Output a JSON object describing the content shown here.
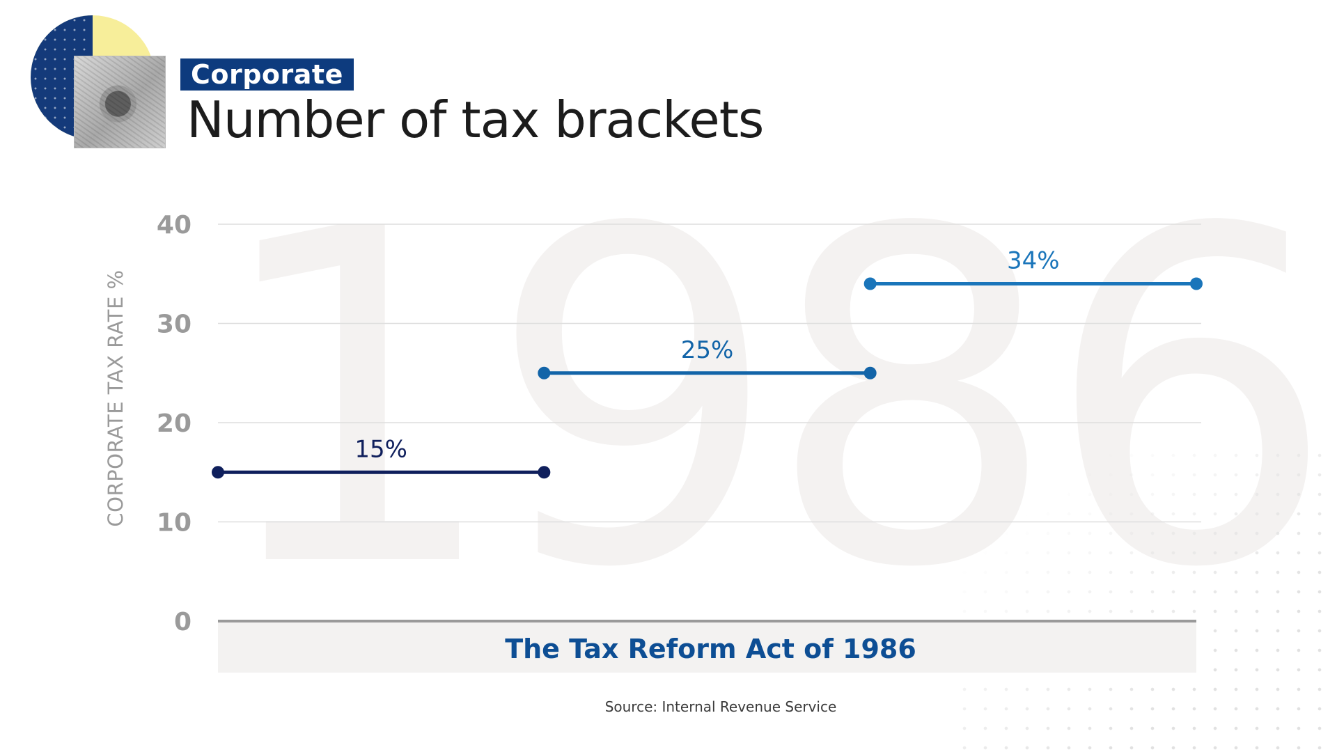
{
  "header": {
    "tag": "Corporate",
    "title": "Number of tax brackets"
  },
  "watermark": "1986",
  "source": "Source: Internal Revenue Service",
  "colors": {
    "tag_bg": "#0d3b7e",
    "series_dark": "#0f1f5c",
    "series_mid": "#1264a8",
    "series_light": "#1a75ba",
    "axis_text": "#9a9a9a",
    "category_text": "#0d4e94"
  },
  "chart_data": {
    "type": "line",
    "title": "Number of tax brackets",
    "ylabel": "CORPORATE TAX RATE %",
    "xlabel": "The Tax Reform Act of 1986",
    "ylim": [
      0,
      40
    ],
    "yticks": [
      0,
      10,
      20,
      30,
      40
    ],
    "grid": true,
    "x_segments": 3,
    "series": [
      {
        "label": "15%",
        "value": 15,
        "x": [
          0,
          1
        ],
        "color": "#0f1f5c"
      },
      {
        "label": "25%",
        "value": 25,
        "x": [
          1,
          2
        ],
        "color": "#1264a8"
      },
      {
        "label": "34%",
        "value": 34,
        "x": [
          2,
          3
        ],
        "color": "#1a75ba"
      }
    ]
  }
}
